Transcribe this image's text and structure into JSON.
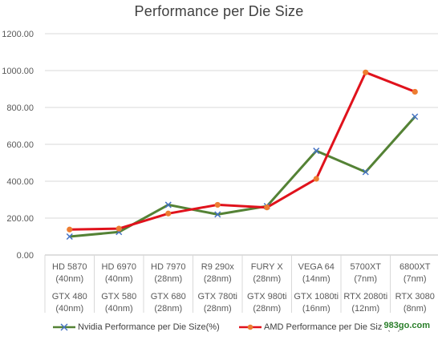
{
  "chart_data": {
    "type": "line",
    "title": "Performance per Die Size",
    "categories": [
      {
        "amd": [
          "HD 5870",
          "(40nm)"
        ],
        "nvidia": [
          "GTX 480",
          "(40nm)"
        ]
      },
      {
        "amd": [
          "HD 6970",
          "(40nm)"
        ],
        "nvidia": [
          "GTX 580",
          "(40nm)"
        ]
      },
      {
        "amd": [
          "HD 7970",
          "(28nm)"
        ],
        "nvidia": [
          "GTX 680",
          "(28nm)"
        ]
      },
      {
        "amd": [
          "R9 290x",
          "(28nm)"
        ],
        "nvidia": [
          "GTX 780ti",
          "(28nm)"
        ]
      },
      {
        "amd": [
          "FURY X",
          "(28nm)"
        ],
        "nvidia": [
          "GTX 980ti",
          "(28nm)"
        ]
      },
      {
        "amd": [
          "VEGA 64",
          "(14nm)"
        ],
        "nvidia": [
          "GTX 1080ti",
          "(16nm)"
        ]
      },
      {
        "amd": [
          "5700XT",
          "(7nm)"
        ],
        "nvidia": [
          "RTX 2080ti",
          "(12nm)"
        ]
      },
      {
        "amd": [
          "6800XT",
          "(7nm)"
        ],
        "nvidia": [
          "RTX 3080",
          "(8nm)"
        ]
      }
    ],
    "series": [
      {
        "name": "Nvidia Performance per Die Size(%)",
        "color": "#548235",
        "marker": "x",
        "values": [
          100,
          125,
          272,
          220,
          265,
          565,
          450,
          750
        ]
      },
      {
        "name": "AMD Performance per Die Size(%)",
        "color": "#e0121c",
        "marker": "circle",
        "marker_color": "#ed7d31",
        "values": [
          138,
          143,
          225,
          272,
          258,
          413,
          990,
          885
        ]
      }
    ],
    "yticks": [
      "0.00",
      "200.00",
      "400.00",
      "600.00",
      "800.00",
      "1000.00",
      "1200.00"
    ],
    "ylim": [
      0,
      1200
    ],
    "grid": true,
    "legend_position": "bottom"
  },
  "watermark": "983go.com"
}
